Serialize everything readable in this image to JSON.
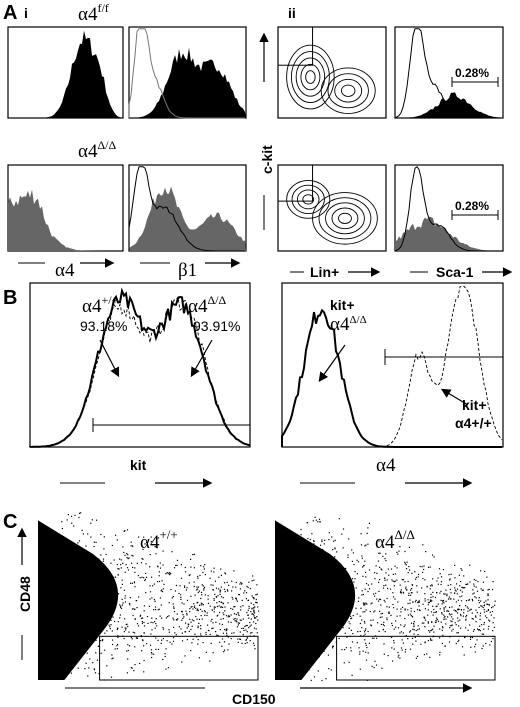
{
  "panel_a": {
    "label": "A",
    "sub_i": "i",
    "sub_ii": "ii",
    "genotype_top": "α4",
    "genotype_top_sup": "f/f",
    "genotype_bottom": "α4",
    "genotype_bottom_sup": "Δ/Δ",
    "x_label_1": "α4",
    "x_label_2": "β1",
    "y_label": "c-kit",
    "x_label_3": "Lin+",
    "x_label_4": "Sca-1",
    "gate_top": "0.28%",
    "gate_bottom": "0.28%"
  },
  "panel_b": {
    "label": "B",
    "left_genotype_1": "α4",
    "left_genotype_1_sup": "+/+",
    "left_pct_1": "93.18%",
    "left_genotype_2": "α4",
    "left_genotype_2_sup": "Δ/Δ",
    "left_pct_2": "93.91%",
    "right_label_1a": "kit+",
    "right_label_1b": "α4",
    "right_label_1b_sup": "Δ/Δ",
    "right_label_2a": "kit+",
    "right_label_2b": "α4+/+",
    "x_label_1": "kit",
    "x_label_2": "α4"
  },
  "panel_c": {
    "label": "C",
    "genotype_1": "α4",
    "genotype_1_sup": "+/+",
    "genotype_2": "α4",
    "genotype_2_sup": "Δ/Δ",
    "y_label": "CD48",
    "x_label": "CD150"
  }
}
